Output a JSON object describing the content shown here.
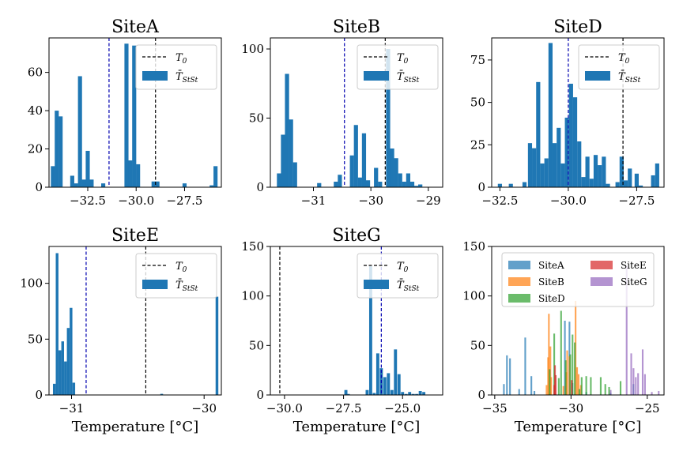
{
  "figure": {
    "xlabel": "Temperature [°C]"
  },
  "legend": {
    "t0_label": "T",
    "t0_sub": "0",
    "tbar_label": "T̄",
    "tbar_sub": "StSt"
  },
  "colors": {
    "hist": "#1f77b4",
    "t0_line": "#000000",
    "mean_line": "#0000b0",
    "SiteA": "#1f77b4",
    "SiteB": "#ff7f0e",
    "SiteD": "#2ca02c",
    "SiteE": "#d62728",
    "SiteG": "#9467bd"
  },
  "chart_data": [
    {
      "type": "bar",
      "title": "SiteA",
      "xlim": [
        -34.5,
        -25.6
      ],
      "ylim": [
        0,
        78
      ],
      "xticks": [
        -32.5,
        -30.0,
        -27.5
      ],
      "xtick_labels": [
        "−32.5",
        "−30.0",
        "−27.5"
      ],
      "yticks": [
        0,
        20,
        40,
        60
      ],
      "bin_width": 0.21,
      "t0": -29.0,
      "mean": -31.4,
      "bins": [
        {
          "x": -34.3,
          "y": 11
        },
        {
          "x": -34.1,
          "y": 40
        },
        {
          "x": -33.9,
          "y": 37
        },
        {
          "x": -33.3,
          "y": 6
        },
        {
          "x": -33.1,
          "y": 2
        },
        {
          "x": -32.9,
          "y": 58
        },
        {
          "x": -32.7,
          "y": 4
        },
        {
          "x": -32.5,
          "y": 19
        },
        {
          "x": -32.3,
          "y": 4
        },
        {
          "x": -31.7,
          "y": 2
        },
        {
          "x": -30.5,
          "y": 75
        },
        {
          "x": -30.3,
          "y": 14
        },
        {
          "x": -30.1,
          "y": 74
        },
        {
          "x": -29.9,
          "y": 12
        },
        {
          "x": -29.1,
          "y": 3
        },
        {
          "x": -28.9,
          "y": 3
        },
        {
          "x": -27.5,
          "y": 2
        },
        {
          "x": -26.1,
          "y": 1
        },
        {
          "x": -25.9,
          "y": 11
        }
      ]
    },
    {
      "type": "bar",
      "title": "SiteB",
      "xlim": [
        -31.75,
        -28.75
      ],
      "ylim": [
        0,
        108
      ],
      "xticks": [
        -31,
        -30,
        -29
      ],
      "xtick_labels": [
        "−31",
        "−30",
        "−29"
      ],
      "yticks": [
        0,
        50,
        100
      ],
      "bin_width": 0.072,
      "t0": -29.75,
      "mean": -30.46,
      "bins": [
        {
          "x": -31.6,
          "y": 10
        },
        {
          "x": -31.53,
          "y": 38
        },
        {
          "x": -31.46,
          "y": 82
        },
        {
          "x": -31.39,
          "y": 49
        },
        {
          "x": -31.32,
          "y": 18
        },
        {
          "x": -30.9,
          "y": 3
        },
        {
          "x": -30.61,
          "y": 4
        },
        {
          "x": -30.54,
          "y": 9
        },
        {
          "x": -30.33,
          "y": 23
        },
        {
          "x": -30.26,
          "y": 45
        },
        {
          "x": -30.19,
          "y": 7
        },
        {
          "x": -30.12,
          "y": 39
        },
        {
          "x": -30.05,
          "y": 5
        },
        {
          "x": -29.91,
          "y": 14
        },
        {
          "x": -29.84,
          "y": 4
        },
        {
          "x": -29.7,
          "y": 100
        },
        {
          "x": -29.63,
          "y": 28
        },
        {
          "x": -29.56,
          "y": 21
        },
        {
          "x": -29.49,
          "y": 10
        },
        {
          "x": -29.42,
          "y": 4
        },
        {
          "x": -29.35,
          "y": 10
        },
        {
          "x": -29.28,
          "y": 4
        },
        {
          "x": -29.21,
          "y": 1
        },
        {
          "x": -29.14,
          "y": 2
        }
      ]
    },
    {
      "type": "bar",
      "title": "SiteD",
      "xlim": [
        -32.8,
        -26.5
      ],
      "ylim": [
        0,
        88
      ],
      "xticks": [
        -32.5,
        -30.0,
        -27.5
      ],
      "xtick_labels": [
        "−32.5",
        "−30.0",
        "−27.5"
      ],
      "yticks": [
        0,
        25,
        50,
        75
      ],
      "bin_width": 0.15,
      "t0": -28.0,
      "mean": -30.0,
      "bins": [
        {
          "x": -32.5,
          "y": 2
        },
        {
          "x": -32.1,
          "y": 2
        },
        {
          "x": -31.6,
          "y": 3
        },
        {
          "x": -31.4,
          "y": 26
        },
        {
          "x": -31.25,
          "y": 23
        },
        {
          "x": -31.1,
          "y": 62
        },
        {
          "x": -30.95,
          "y": 14
        },
        {
          "x": -30.8,
          "y": 17
        },
        {
          "x": -30.65,
          "y": 85
        },
        {
          "x": -30.5,
          "y": 26
        },
        {
          "x": -30.35,
          "y": 35
        },
        {
          "x": -30.2,
          "y": 14
        },
        {
          "x": -30.05,
          "y": 41
        },
        {
          "x": -29.9,
          "y": 61
        },
        {
          "x": -29.75,
          "y": 53
        },
        {
          "x": -29.6,
          "y": 27
        },
        {
          "x": -29.45,
          "y": 6
        },
        {
          "x": -29.3,
          "y": 18
        },
        {
          "x": -29.15,
          "y": 5
        },
        {
          "x": -29.0,
          "y": 19
        },
        {
          "x": -28.85,
          "y": 13
        },
        {
          "x": -28.7,
          "y": 18
        },
        {
          "x": -28.55,
          "y": 2
        },
        {
          "x": -28.2,
          "y": 3
        },
        {
          "x": -28.05,
          "y": 18
        },
        {
          "x": -27.9,
          "y": 4
        },
        {
          "x": -27.75,
          "y": 11
        },
        {
          "x": -27.5,
          "y": 8
        },
        {
          "x": -27.35,
          "y": 1
        },
        {
          "x": -26.9,
          "y": 7
        },
        {
          "x": -26.75,
          "y": 14
        }
      ]
    },
    {
      "type": "bar",
      "title": "SiteE",
      "xlim": [
        -31.17,
        -29.87
      ],
      "ylim": [
        0,
        133
      ],
      "xticks": [
        -31,
        -30
      ],
      "xtick_labels": [
        "−31",
        "−30"
      ],
      "yticks": [
        0,
        50,
        100
      ],
      "bin_width": 0.0205,
      "t0": -30.44,
      "mean": -30.89,
      "bins": [
        {
          "x": -31.13,
          "y": 10
        },
        {
          "x": -31.109,
          "y": 127
        },
        {
          "x": -31.088,
          "y": 40
        },
        {
          "x": -31.067,
          "y": 48
        },
        {
          "x": -31.046,
          "y": 30
        },
        {
          "x": -31.025,
          "y": 60
        },
        {
          "x": -31.004,
          "y": 78
        },
        {
          "x": -30.983,
          "y": 11
        },
        {
          "x": -30.32,
          "y": 1
        },
        {
          "x": -29.903,
          "y": 88
        }
      ]
    },
    {
      "type": "bar",
      "title": "SiteG",
      "xlim": [
        -30.6,
        -23.3
      ],
      "ylim": [
        0,
        150
      ],
      "xticks": [
        -30.0,
        -27.5,
        -25.0
      ],
      "xtick_labels": [
        "−30.0",
        "−27.5",
        "−25.0"
      ],
      "yticks": [
        0,
        50,
        100,
        150
      ],
      "bin_width": 0.13,
      "t0": -30.2,
      "mean": -25.9,
      "bins": [
        {
          "x": -27.4,
          "y": 5
        },
        {
          "x": -27.3,
          "y": 1
        },
        {
          "x": -26.5,
          "y": 5
        },
        {
          "x": -26.35,
          "y": 130
        },
        {
          "x": -26.2,
          "y": 2
        },
        {
          "x": -26.05,
          "y": 42
        },
        {
          "x": -25.9,
          "y": 27
        },
        {
          "x": -25.75,
          "y": 18
        },
        {
          "x": -25.6,
          "y": 22
        },
        {
          "x": -25.45,
          "y": 5
        },
        {
          "x": -25.3,
          "y": 46
        },
        {
          "x": -25.15,
          "y": 21
        },
        {
          "x": -25.0,
          "y": 3
        },
        {
          "x": -24.85,
          "y": 1
        },
        {
          "x": -24.7,
          "y": 3
        },
        {
          "x": -24.55,
          "y": 1
        },
        {
          "x": -24.4,
          "y": 1
        },
        {
          "x": -24.25,
          "y": 4
        },
        {
          "x": -24.1,
          "y": 3
        }
      ]
    },
    {
      "type": "bar",
      "title": "",
      "overlay": true,
      "xlim": [
        -35.2,
        -23.9
      ],
      "ylim": [
        0,
        150
      ],
      "xticks": [
        -35,
        -30,
        -25
      ],
      "xtick_labels": [
        "−35",
        "−30",
        "−25"
      ],
      "yticks": [
        0,
        50,
        100,
        150
      ],
      "bin_width": 0.11,
      "series": [
        {
          "name": "SiteA",
          "color_key": "SiteA",
          "bins": [
            {
              "x": -34.4,
              "y": 11
            },
            {
              "x": -34.2,
              "y": 40
            },
            {
              "x": -34.0,
              "y": 37
            },
            {
              "x": -33.4,
              "y": 6
            },
            {
              "x": -33.0,
              "y": 58
            },
            {
              "x": -32.6,
              "y": 19
            },
            {
              "x": -32.4,
              "y": 4
            },
            {
              "x": -30.4,
              "y": 75
            },
            {
              "x": -30.1,
              "y": 74
            },
            {
              "x": -29.9,
              "y": 12
            },
            {
              "x": -29.0,
              "y": 3
            },
            {
              "x": -27.4,
              "y": 2
            },
            {
              "x": -25.9,
              "y": 11
            }
          ]
        },
        {
          "name": "SiteB",
          "color_key": "SiteB",
          "bins": [
            {
              "x": -31.6,
              "y": 10
            },
            {
              "x": -31.5,
              "y": 38
            },
            {
              "x": -31.45,
              "y": 82
            },
            {
              "x": -31.35,
              "y": 49
            },
            {
              "x": -31.3,
              "y": 18
            },
            {
              "x": -30.5,
              "y": 9
            },
            {
              "x": -30.3,
              "y": 23
            },
            {
              "x": -30.25,
              "y": 45
            },
            {
              "x": -30.1,
              "y": 39
            },
            {
              "x": -29.7,
              "y": 95
            },
            {
              "x": -29.6,
              "y": 28
            },
            {
              "x": -29.5,
              "y": 21
            },
            {
              "x": -29.35,
              "y": 10
            }
          ]
        },
        {
          "name": "SiteD",
          "color_key": "SiteD",
          "bins": [
            {
              "x": -31.4,
              "y": 26
            },
            {
              "x": -31.1,
              "y": 62
            },
            {
              "x": -30.8,
              "y": 17
            },
            {
              "x": -30.65,
              "y": 85
            },
            {
              "x": -30.35,
              "y": 35
            },
            {
              "x": -30.05,
              "y": 41
            },
            {
              "x": -29.9,
              "y": 61
            },
            {
              "x": -29.75,
              "y": 53
            },
            {
              "x": -29.45,
              "y": 6
            },
            {
              "x": -29.3,
              "y": 18
            },
            {
              "x": -29.0,
              "y": 19
            },
            {
              "x": -28.7,
              "y": 18
            },
            {
              "x": -28.05,
              "y": 18
            },
            {
              "x": -27.75,
              "y": 11
            },
            {
              "x": -27.5,
              "y": 8
            },
            {
              "x": -26.75,
              "y": 14
            }
          ]
        },
        {
          "name": "SiteE",
          "color_key": "SiteE",
          "bins": [
            {
              "x": -31.1,
              "y": 10
            },
            {
              "x": -31.05,
              "y": 30
            },
            {
              "x": -31.0,
              "y": 20
            },
            {
              "x": -29.95,
              "y": 15
            }
          ]
        },
        {
          "name": "SiteG",
          "color_key": "SiteG",
          "bins": [
            {
              "x": -27.4,
              "y": 5
            },
            {
              "x": -26.35,
              "y": 130
            },
            {
              "x": -26.05,
              "y": 42
            },
            {
              "x": -25.9,
              "y": 27
            },
            {
              "x": -25.75,
              "y": 18
            },
            {
              "x": -25.6,
              "y": 22
            },
            {
              "x": -25.3,
              "y": 46
            },
            {
              "x": -25.15,
              "y": 21
            },
            {
              "x": -24.7,
              "y": 3
            },
            {
              "x": -24.25,
              "y": 4
            }
          ]
        }
      ]
    }
  ]
}
